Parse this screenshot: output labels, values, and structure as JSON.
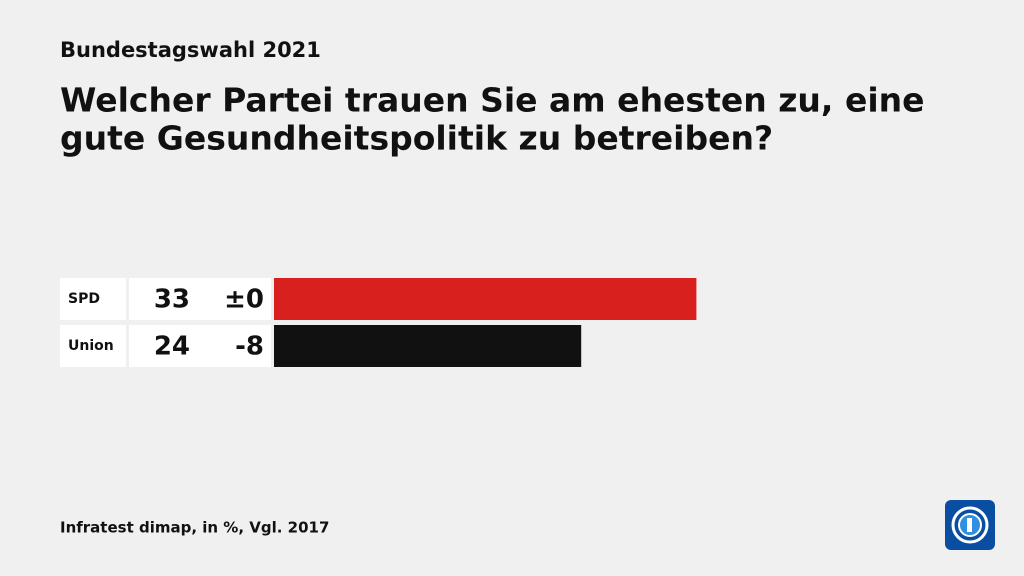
{
  "chart_data": {
    "type": "bar",
    "supertitle": "Bundestagswahl 2021",
    "title": [
      "Welcher Partei trauen Sie am ehesten zu, eine",
      "gute Gesundheitspolitik zu betreiben?"
    ],
    "categories": [
      "SPD",
      "Union"
    ],
    "values": [
      33,
      24
    ],
    "changes": [
      "±0",
      "-8"
    ],
    "colors": [
      "#d8201f",
      "#111111"
    ],
    "source": "Infratest dimap, in %, Vgl. 2017"
  }
}
